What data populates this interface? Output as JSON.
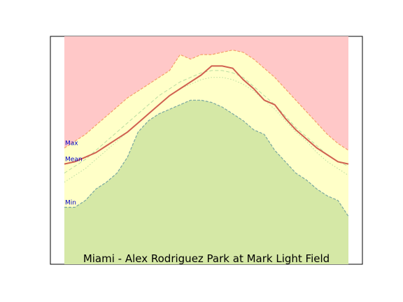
{
  "chart_data": {
    "type": "area",
    "title": "Miami - Alex Rodriguez Park at Mark Light Field",
    "xlabel": "",
    "ylabel": "",
    "grid": false,
    "legend": "none",
    "axes": {
      "ticks_visible": false,
      "ylim": [
        0,
        100
      ]
    },
    "band_labels": [
      "Max",
      "Mean",
      "Min"
    ],
    "colors": {
      "above_max": "#ffc8c8",
      "max_to_min": "#ffffc8",
      "below_min": "#d5e8a6",
      "max_line": "#f5a06a",
      "mean_line": "#d06050",
      "min_line": "#7aa8a0",
      "aux_line": "#b8dca0",
      "label_text": "#0000cc"
    },
    "series": [
      {
        "id": "max",
        "values": [
          51,
          54,
          57,
          61,
          65,
          69,
          73,
          76,
          79,
          82,
          85,
          92,
          90,
          92,
          92,
          93,
          94,
          93,
          90,
          86,
          82,
          77,
          72,
          67,
          62,
          57,
          53,
          50
        ]
      },
      {
        "id": "mean",
        "values": [
          44,
          45,
          47,
          49,
          52,
          55,
          58,
          62,
          66,
          70,
          74,
          77,
          80,
          83,
          87,
          87,
          86,
          81,
          77,
          72,
          70,
          64,
          59,
          55,
          51,
          48,
          45,
          44
        ]
      },
      {
        "id": "min",
        "values": [
          25,
          25,
          28,
          33,
          36,
          40,
          47,
          58,
          63,
          66,
          68,
          70,
          72,
          72,
          71,
          69,
          66,
          63,
          59,
          57,
          50,
          45,
          40,
          37,
          33,
          30,
          28,
          21
        ]
      },
      {
        "id": "aux_upper",
        "values": [
          40,
          43,
          46,
          50,
          54,
          58,
          62,
          66,
          70,
          74,
          77,
          80,
          82,
          84,
          85,
          85,
          84,
          82,
          78,
          74,
          70,
          65,
          60,
          56,
          52,
          48,
          45,
          43
        ]
      },
      {
        "id": "aux_lower",
        "values": [
          36,
          39,
          42,
          46,
          50,
          54,
          58,
          62,
          66,
          70,
          74,
          77,
          79,
          81,
          82,
          82,
          81,
          79,
          76,
          72,
          68,
          63,
          58,
          54,
          49,
          45,
          42,
          39
        ]
      }
    ]
  }
}
